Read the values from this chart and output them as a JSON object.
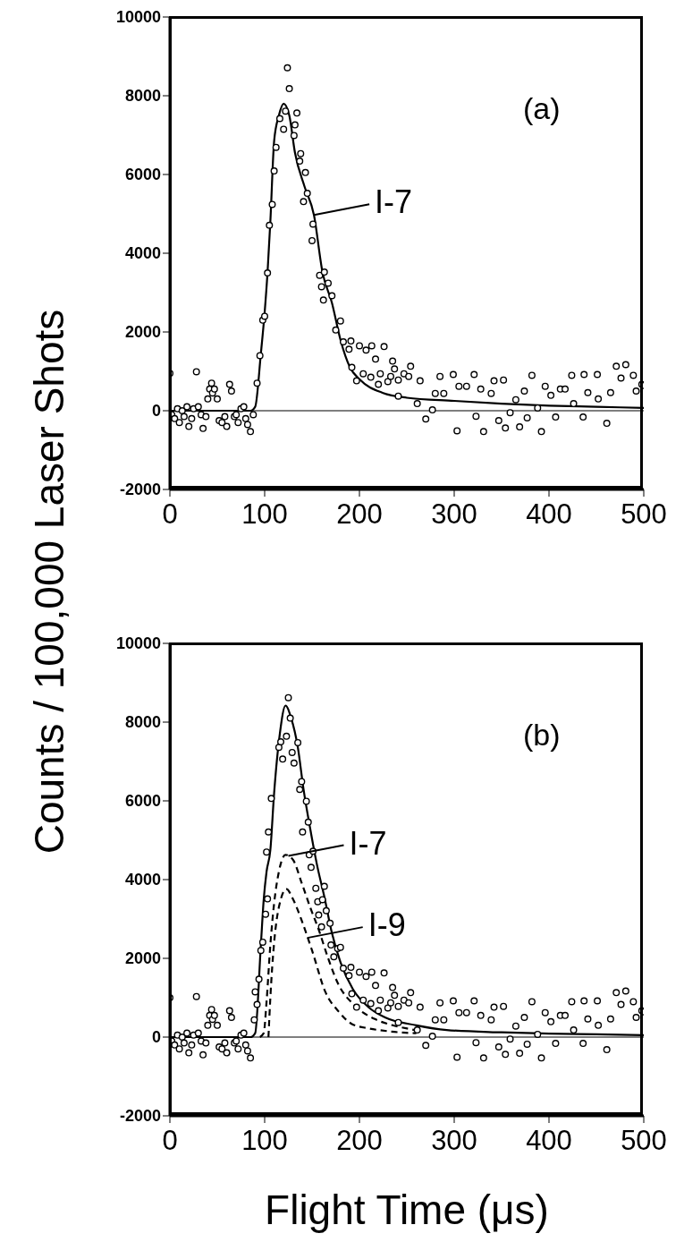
{
  "chart_data": [
    {
      "type": "scatter",
      "ylabel": "Counts / 100,000 Laser Shots",
      "xlim": [
        0,
        500
      ],
      "xticks": [
        0,
        100,
        200,
        300,
        400,
        500
      ],
      "ylim": [
        -2000,
        10000
      ],
      "yticks": [
        -2000,
        0,
        2000,
        4000,
        6000,
        8000,
        10000
      ],
      "ref_lines": [
        {
          "axis": "y",
          "value": 0,
          "color": "#000000"
        }
      ],
      "annotations": [
        "(a)",
        {
          "text": "I-7",
          "x": 152,
          "y": 4970
        }
      ],
      "series": [
        {
          "type": "scatter",
          "color": "#000000",
          "marker": "circle",
          "x": [
            0,
            2,
            5,
            8,
            10,
            13,
            15,
            18,
            20,
            23,
            25,
            28,
            30,
            33,
            35,
            38,
            40,
            42,
            44,
            45,
            47,
            50,
            52,
            55,
            58,
            60,
            63,
            65,
            68,
            70,
            72,
            75,
            78,
            80,
            82,
            85,
            88,
            92,
            95,
            98,
            100,
            103,
            105,
            108,
            110,
            112,
            116,
            120,
            122,
            124,
            126,
            131,
            132,
            134,
            137,
            138,
            141,
            143,
            145,
            150,
            151,
            158,
            160,
            162,
            163,
            167,
            171,
            175,
            180,
            183,
            189,
            191,
            192,
            197,
            200,
            204,
            207,
            212,
            213,
            217,
            220,
            222,
            226,
            230,
            233,
            235,
            237,
            241,
            241,
            247,
            252,
            254,
            261,
            264,
            270,
            277,
            280,
            285,
            289,
            299,
            303,
            305,
            313,
            321,
            323,
            328,
            331,
            339,
            342,
            347,
            352,
            354,
            359,
            365,
            369,
            374,
            377,
            382,
            388,
            392,
            396,
            402,
            407,
            412,
            417,
            424,
            426,
            436,
            437,
            441,
            451,
            452,
            461,
            465,
            471,
            476,
            481,
            489,
            492,
            498,
            500
          ],
          "values": [
            950,
            -100,
            -200,
            50,
            -300,
            0,
            -150,
            100,
            -400,
            -200,
            50,
            990,
            100,
            -100,
            -450,
            -150,
            300,
            550,
            700,
            450,
            550,
            300,
            -250,
            -300,
            -150,
            -400,
            670,
            500,
            -150,
            -100,
            -300,
            50,
            100,
            -200,
            -350,
            -530,
            -100,
            700,
            1400,
            2300,
            2400,
            3500,
            4710,
            5240,
            6090,
            6690,
            7420,
            7150,
            7610,
            8710,
            8180,
            6990,
            7260,
            7560,
            6340,
            6530,
            5310,
            6050,
            5520,
            4320,
            4740,
            3440,
            3150,
            2810,
            3520,
            3240,
            2920,
            2050,
            2280,
            1750,
            1560,
            1770,
            1100,
            760,
            1650,
            940,
            1540,
            850,
            1650,
            1310,
            670,
            940,
            1630,
            740,
            870,
            1260,
            1060,
            780,
            370,
            940,
            870,
            1130,
            180,
            760,
            -210,
            20,
            440,
            870,
            440,
            920,
            -510,
            620,
            620,
            920,
            -140,
            550,
            -530,
            440,
            760,
            -250,
            780,
            -440,
            -50,
            280,
            -410,
            500,
            -180,
            900,
            70,
            -530,
            620,
            390,
            -160,
            550,
            550,
            900,
            180,
            -160,
            920,
            460,
            920,
            300,
            -320,
            460,
            1130,
            830,
            1170,
            900,
            500,
            670,
            640
          ]
        },
        {
          "type": "line",
          "color": "#000000",
          "line_style": "solid",
          "x": [
            0,
            85,
            90,
            96,
            100,
            103,
            106,
            110,
            115,
            120,
            126,
            132,
            142,
            152,
            161,
            171,
            180,
            190,
            200,
            225,
            250,
            300,
            350,
            400,
            450,
            500
          ],
          "values": [
            0,
            0,
            100,
            1450,
            2500,
            3500,
            4800,
            6850,
            7500,
            7800,
            7500,
            6550,
            5700,
            4970,
            3520,
            2740,
            1800,
            1100,
            800,
            450,
            330,
            250,
            180,
            130,
            100,
            70
          ]
        }
      ]
    },
    {
      "type": "scatter",
      "xlabel": "Flight Time (μs)",
      "xlim": [
        0,
        500
      ],
      "xticks": [
        0,
        100,
        200,
        300,
        400,
        500
      ],
      "ylim": [
        -2000,
        10000
      ],
      "yticks": [
        -2000,
        0,
        2000,
        4000,
        6000,
        8000,
        10000
      ],
      "ref_lines": [
        {
          "axis": "y",
          "value": 0,
          "color": "#000000"
        }
      ],
      "annotations": [
        "(b)",
        {
          "text": "I-7",
          "x": 125,
          "y": 4600
        },
        {
          "text": "I-9",
          "x": 145,
          "y": 2520
        }
      ],
      "series": [
        {
          "type": "scatter",
          "color": "#000000",
          "marker": "circle",
          "x": [
            0,
            2,
            5,
            8,
            10,
            13,
            15,
            18,
            20,
            23,
            25,
            28,
            30,
            33,
            35,
            38,
            40,
            42,
            44,
            45,
            47,
            50,
            52,
            55,
            58,
            60,
            63,
            65,
            68,
            70,
            72,
            75,
            78,
            80,
            82,
            85,
            89,
            90,
            92,
            94,
            96,
            98,
            101,
            102,
            103,
            104,
            107,
            115,
            117,
            119,
            123,
            125,
            127,
            129,
            131,
            135,
            137,
            139,
            140,
            144,
            146,
            147,
            149,
            151,
            154,
            156,
            157,
            160,
            161,
            163,
            165,
            169,
            170,
            173,
            177,
            180,
            183,
            189,
            191,
            192,
            197,
            200,
            204,
            207,
            212,
            213,
            217,
            220,
            222,
            226,
            230,
            233,
            235,
            237,
            241,
            241,
            247,
            252,
            254,
            261,
            264,
            270,
            277,
            280,
            285,
            289,
            299,
            303,
            305,
            313,
            321,
            323,
            328,
            331,
            339,
            342,
            347,
            352,
            354,
            359,
            365,
            369,
            374,
            377,
            382,
            388,
            392,
            396,
            402,
            407,
            412,
            417,
            424,
            426,
            436,
            437,
            441,
            451,
            452,
            461,
            465,
            471,
            476,
            481,
            489,
            492,
            498,
            500
          ],
          "values": [
            1000,
            -100,
            -200,
            50,
            -300,
            0,
            -150,
            100,
            -400,
            -200,
            50,
            1030,
            100,
            -100,
            -450,
            -150,
            300,
            550,
            700,
            450,
            550,
            300,
            -250,
            -300,
            -150,
            -400,
            670,
            500,
            -150,
            -100,
            -300,
            50,
            100,
            -200,
            -350,
            -530,
            440,
            1150,
            830,
            1470,
            2200,
            2410,
            3120,
            4700,
            3510,
            5210,
            6060,
            7360,
            7500,
            7060,
            7640,
            8620,
            8100,
            7230,
            6960,
            7480,
            6290,
            6490,
            5210,
            5990,
            5460,
            4630,
            4310,
            4720,
            3780,
            3440,
            3100,
            2800,
            3490,
            3830,
            3210,
            2890,
            2340,
            2040,
            2250,
            2280,
            1750,
            1560,
            1770,
            1100,
            760,
            1650,
            940,
            1540,
            850,
            1650,
            1310,
            670,
            940,
            1630,
            740,
            870,
            1260,
            1060,
            780,
            370,
            940,
            870,
            1130,
            180,
            760,
            -210,
            20,
            440,
            870,
            440,
            920,
            -510,
            620,
            620,
            920,
            -140,
            550,
            -530,
            440,
            760,
            -250,
            780,
            -440,
            -50,
            280,
            -410,
            500,
            -180,
            900,
            70,
            -530,
            620,
            390,
            -160,
            550,
            550,
            900,
            180,
            -160,
            920,
            460,
            920,
            300,
            -320,
            460,
            1130,
            830,
            1170,
            900,
            500,
            670,
            640
          ]
        },
        {
          "type": "line",
          "color": "#000000",
          "line_style": "solid",
          "x": [
            0,
            85,
            90,
            96,
            99,
            102,
            106,
            110,
            116,
            122,
            128,
            135,
            141,
            148,
            155,
            163,
            171,
            180,
            193,
            210,
            227,
            260,
            292,
            350,
            400,
            450,
            500
          ],
          "values": [
            0,
            0,
            100,
            2340,
            3490,
            4200,
            4750,
            6200,
            7700,
            8420,
            8100,
            7360,
            6300,
            5300,
            4400,
            3560,
            2640,
            1900,
            1220,
            750,
            500,
            300,
            180,
            120,
            90,
            70,
            50
          ]
        },
        {
          "type": "line",
          "color": "#000000",
          "line_style": "dashed",
          "x": [
            95,
            99,
            102,
            106,
            110,
            115,
            122,
            130,
            139,
            148,
            157,
            167,
            177,
            195,
            218,
            235,
            254,
            265
          ],
          "values": [
            0,
            100,
            900,
            2340,
            3400,
            4200,
            4630,
            4500,
            3920,
            3300,
            2730,
            2000,
            1380,
            800,
            440,
            300,
            200,
            150
          ]
        },
        {
          "type": "line",
          "color": "#000000",
          "line_style": "dashed",
          "x": [
            104,
            106,
            110,
            115,
            123,
            130,
            140,
            150,
            164,
            178,
            193,
            210,
            230,
            249,
            260
          ],
          "values": [
            0,
            1000,
            2400,
            3300,
            3760,
            3500,
            2900,
            2200,
            1150,
            650,
            320,
            220,
            150,
            110,
            100
          ]
        }
      ]
    }
  ]
}
